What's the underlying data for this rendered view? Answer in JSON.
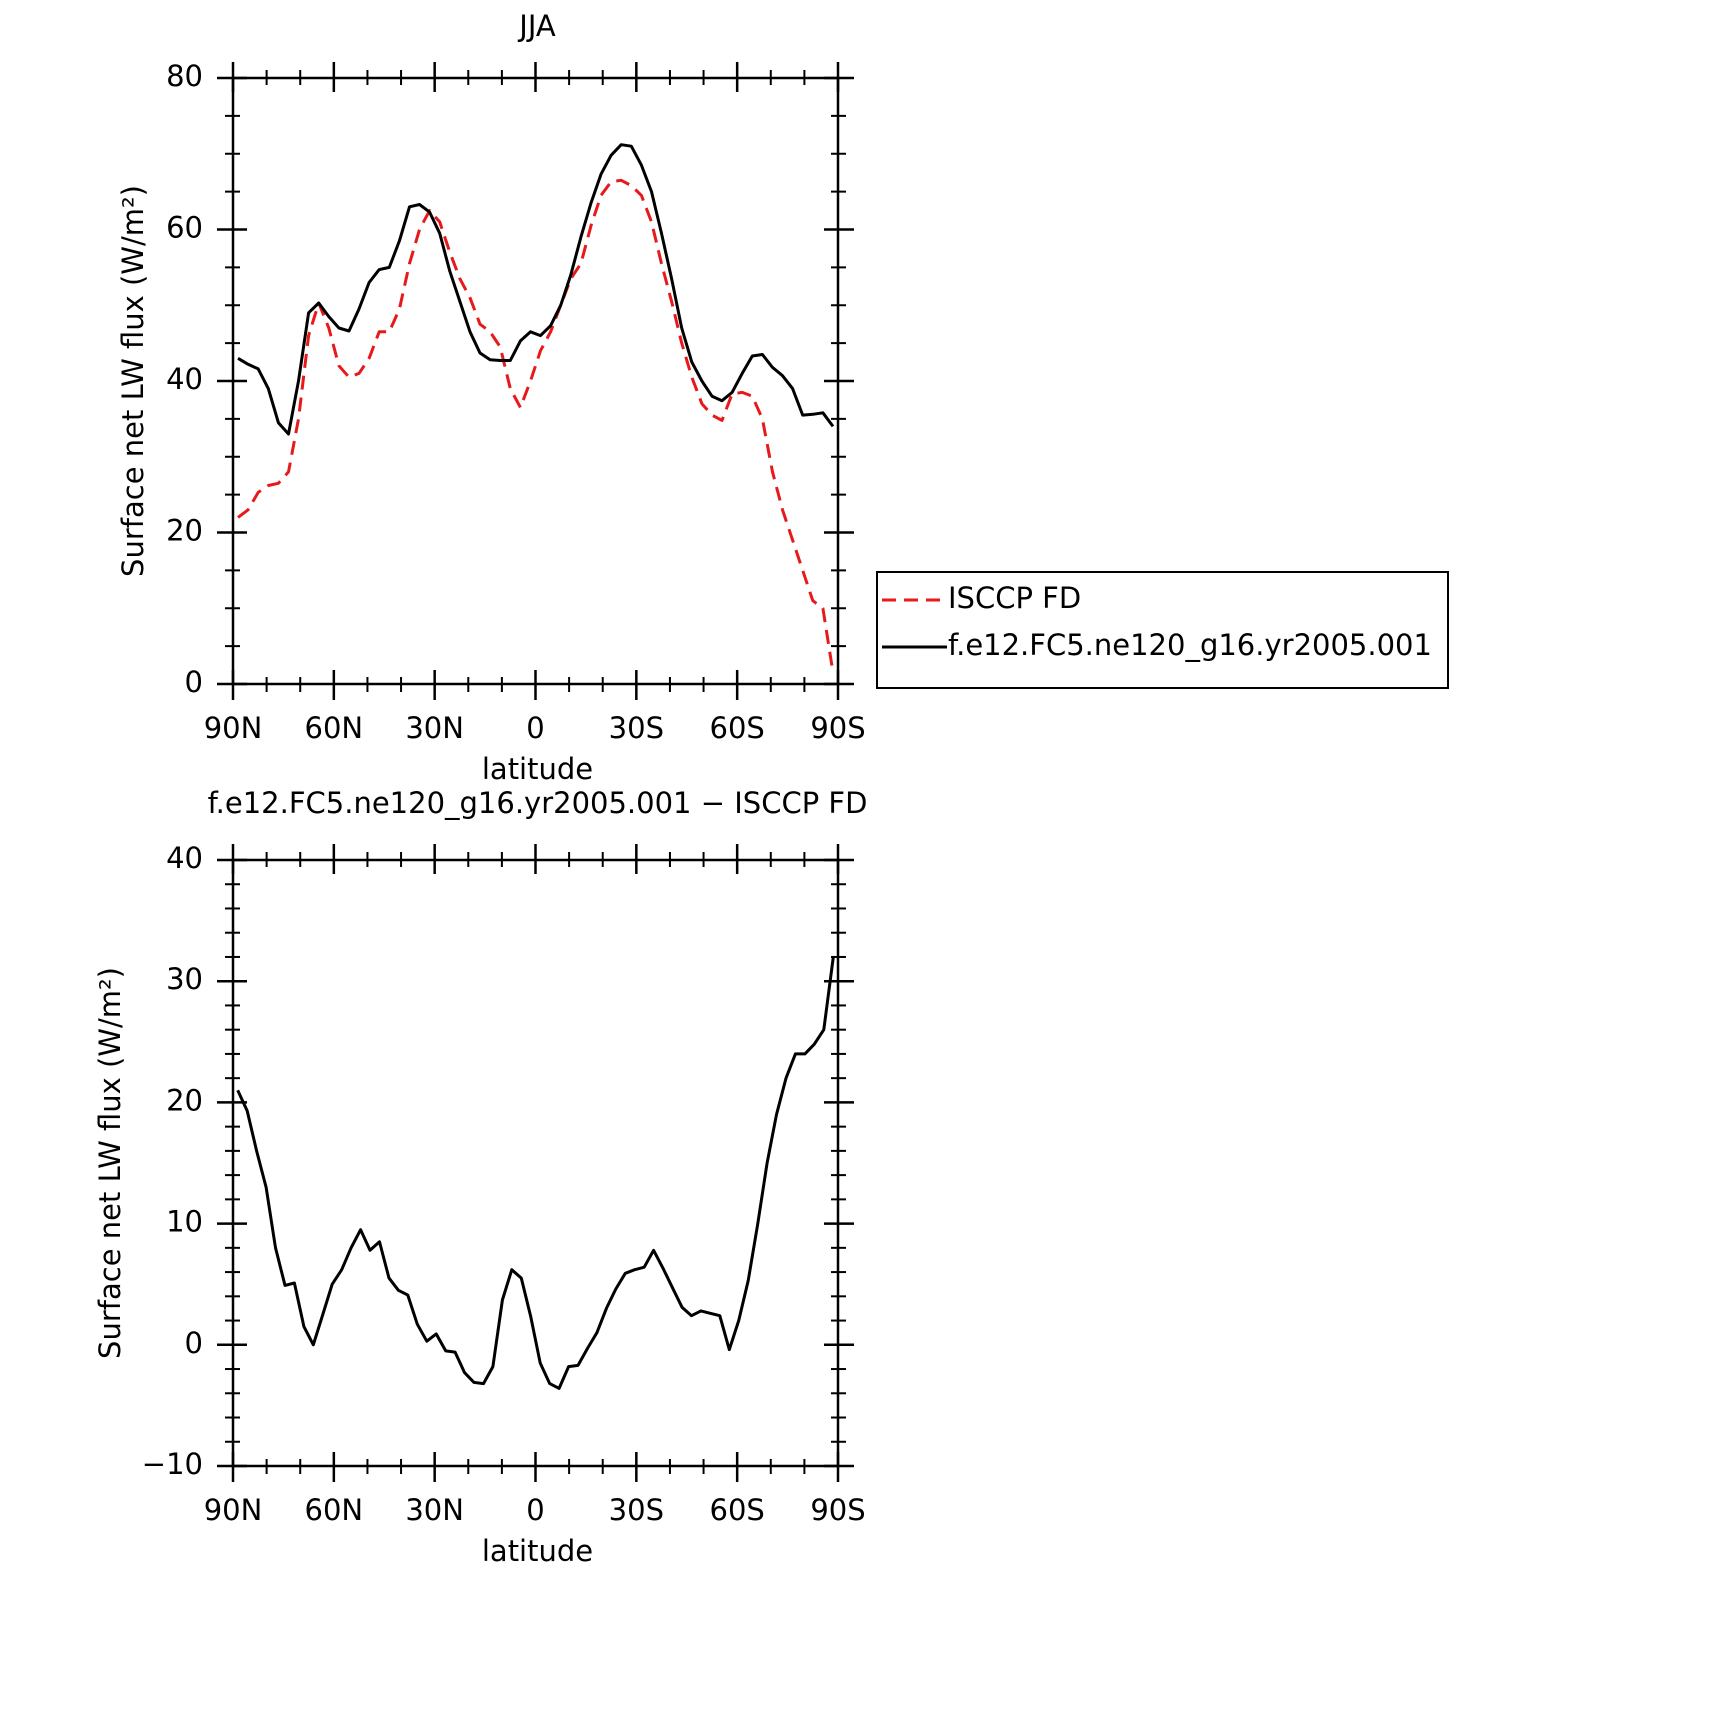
{
  "chart_data": [
    {
      "type": "line",
      "title": "JJA",
      "xlabel": "latitude",
      "ylabel": "Surface net LW flux (W/m²)",
      "x": [
        88.5,
        85.5,
        82.5,
        79.5,
        76.5,
        73.5,
        70.5,
        67.5,
        64.5,
        61.5,
        58.5,
        55.5,
        52.5,
        49.5,
        46.5,
        43.5,
        40.5,
        37.5,
        34.5,
        31.5,
        28.5,
        25.5,
        22.5,
        19.5,
        16.5,
        13.5,
        10.5,
        7.5,
        4.5,
        1.5,
        -1.5,
        -4.5,
        -7.5,
        -10.5,
        -13.5,
        -16.5,
        -19.5,
        -22.5,
        -25.5,
        -28.5,
        -31.5,
        -34.5,
        -37.5,
        -40.5,
        -43.5,
        -46.5,
        -49.5,
        -52.5,
        -55.5,
        -58.5,
        -61.5,
        -64.5,
        -67.5,
        -70.5,
        -73.5,
        -76.5,
        -79.5,
        -82.5,
        -85.5,
        -88.5
      ],
      "series": [
        {
          "name": "ISCCP FD",
          "color": "#e8191a",
          "dashed": true,
          "values": [
            22,
            23,
            25.3,
            26.2,
            26.5,
            28,
            35,
            46,
            50.3,
            47,
            42,
            40.5,
            41,
            43,
            46.5,
            46.5,
            49.5,
            55.5,
            60,
            62.5,
            61,
            57,
            53.5,
            51,
            47.5,
            46.5,
            44.5,
            39,
            36.5,
            40,
            44,
            46.5,
            50,
            53.5,
            55.5,
            60.5,
            64.5,
            66.3,
            66.5,
            65.8,
            64.5,
            61,
            55.5,
            50.5,
            45,
            40.5,
            37,
            35.5,
            34.8,
            38.3,
            38.5,
            38,
            35,
            28,
            23,
            19,
            15,
            11,
            10,
            1.5
          ]
        },
        {
          "name": "f.e12.FC5.ne120_g16.yr2005.001",
          "color": "#000000",
          "dashed": false,
          "values": [
            43,
            42.2,
            41.6,
            39,
            34.5,
            33,
            40,
            49,
            50.3,
            48.5,
            47,
            46.6,
            49.5,
            53,
            54.7,
            55,
            58.5,
            63,
            63.3,
            62.3,
            59.5,
            54.5,
            50.5,
            46.5,
            43.7,
            42.8,
            42.7,
            42.7,
            45.3,
            46.5,
            46,
            47.3,
            50,
            54,
            59,
            63.5,
            67.3,
            69.8,
            71.2,
            71,
            68.5,
            65,
            59.5,
            53.5,
            47,
            42.5,
            40,
            38,
            37.4,
            38.5,
            41,
            43.3,
            43.5,
            41.8,
            40.7,
            39,
            35.5,
            35.6,
            35.8,
            34
          ]
        }
      ],
      "xlim": [
        90,
        -90
      ],
      "xticks": [
        {
          "value": 90,
          "label": "90N"
        },
        {
          "value": 60,
          "label": "60N"
        },
        {
          "value": 30,
          "label": "30N"
        },
        0,
        {
          "value": -30,
          "label": "30S"
        },
        {
          "value": -60,
          "label": "60S"
        },
        {
          "value": -90,
          "label": "90S"
        }
      ],
      "ylim": [
        0,
        80
      ],
      "yticks": [
        0,
        20,
        40,
        60,
        80
      ],
      "legend": "right"
    },
    {
      "type": "line",
      "title": "f.e12.FC5.ne120_g16.yr2005.001 − ISCCP FD",
      "xlabel": "latitude",
      "ylabel": "Surface net LW flux (W/m²)",
      "x": [
        88.6,
        85.79,
        82.98,
        80.16,
        77.35,
        74.54,
        71.73,
        68.91,
        66.1,
        63.29,
        60.48,
        57.66,
        54.85,
        52.04,
        49.23,
        46.41,
        43.6,
        40.79,
        37.98,
        35.16,
        32.35,
        29.54,
        26.73,
        23.91,
        21.1,
        18.29,
        15.48,
        12.66,
        9.85,
        7.04,
        4.23,
        1.41,
        -1.4,
        -4.21,
        -7.02,
        -9.84,
        -12.65,
        -15.46,
        -18.27,
        -21.09,
        -23.9,
        -26.71,
        -29.52,
        -32.34,
        -35.15,
        -37.96,
        -40.77,
        -43.59,
        -46.4,
        -49.21,
        -52.02,
        -54.84,
        -57.65,
        -60.46,
        -63.27,
        -66.09,
        -68.9,
        -71.71,
        -74.52,
        -77.34,
        -80.15,
        -82.96,
        -85.77,
        -88.59
      ],
      "values": [
        21,
        19.3,
        16,
        13,
        8,
        4.9,
        5.1,
        1.5,
        0,
        2.5,
        5,
        6.2,
        8,
        9.5,
        7.8,
        8.5,
        5.5,
        4.5,
        4.1,
        1.7,
        0.3,
        0.9,
        -0.5,
        -0.6,
        -2.3,
        -3.1,
        -3.2,
        -1.8,
        3.7,
        6.2,
        5.5,
        2.3,
        -1.5,
        -3.2,
        -3.6,
        -1.8,
        -1.7,
        -0.3,
        1,
        3,
        4.6,
        5.9,
        6.2,
        6.4,
        7.8,
        6.3,
        4.7,
        3.1,
        2.4,
        2.8,
        2.6,
        2.4,
        -0.4,
        2,
        5.3,
        9.9,
        15,
        19,
        22,
        24,
        24,
        24.8,
        26,
        32
      ],
      "color": "#000000",
      "xlim": [
        90,
        -90
      ],
      "xticks": [
        {
          "value": 90,
          "label": "90N"
        },
        {
          "value": 60,
          "label": "60N"
        },
        {
          "value": 30,
          "label": "30N"
        },
        0,
        {
          "value": -30,
          "label": "30S"
        },
        {
          "value": -60,
          "label": "60S"
        },
        {
          "value": -90,
          "label": "90S"
        }
      ],
      "ylim": [
        -10,
        40
      ],
      "yticks": [
        {
          "value": -10,
          "label": "−10"
        },
        0,
        10,
        20,
        30,
        40
      ]
    }
  ]
}
